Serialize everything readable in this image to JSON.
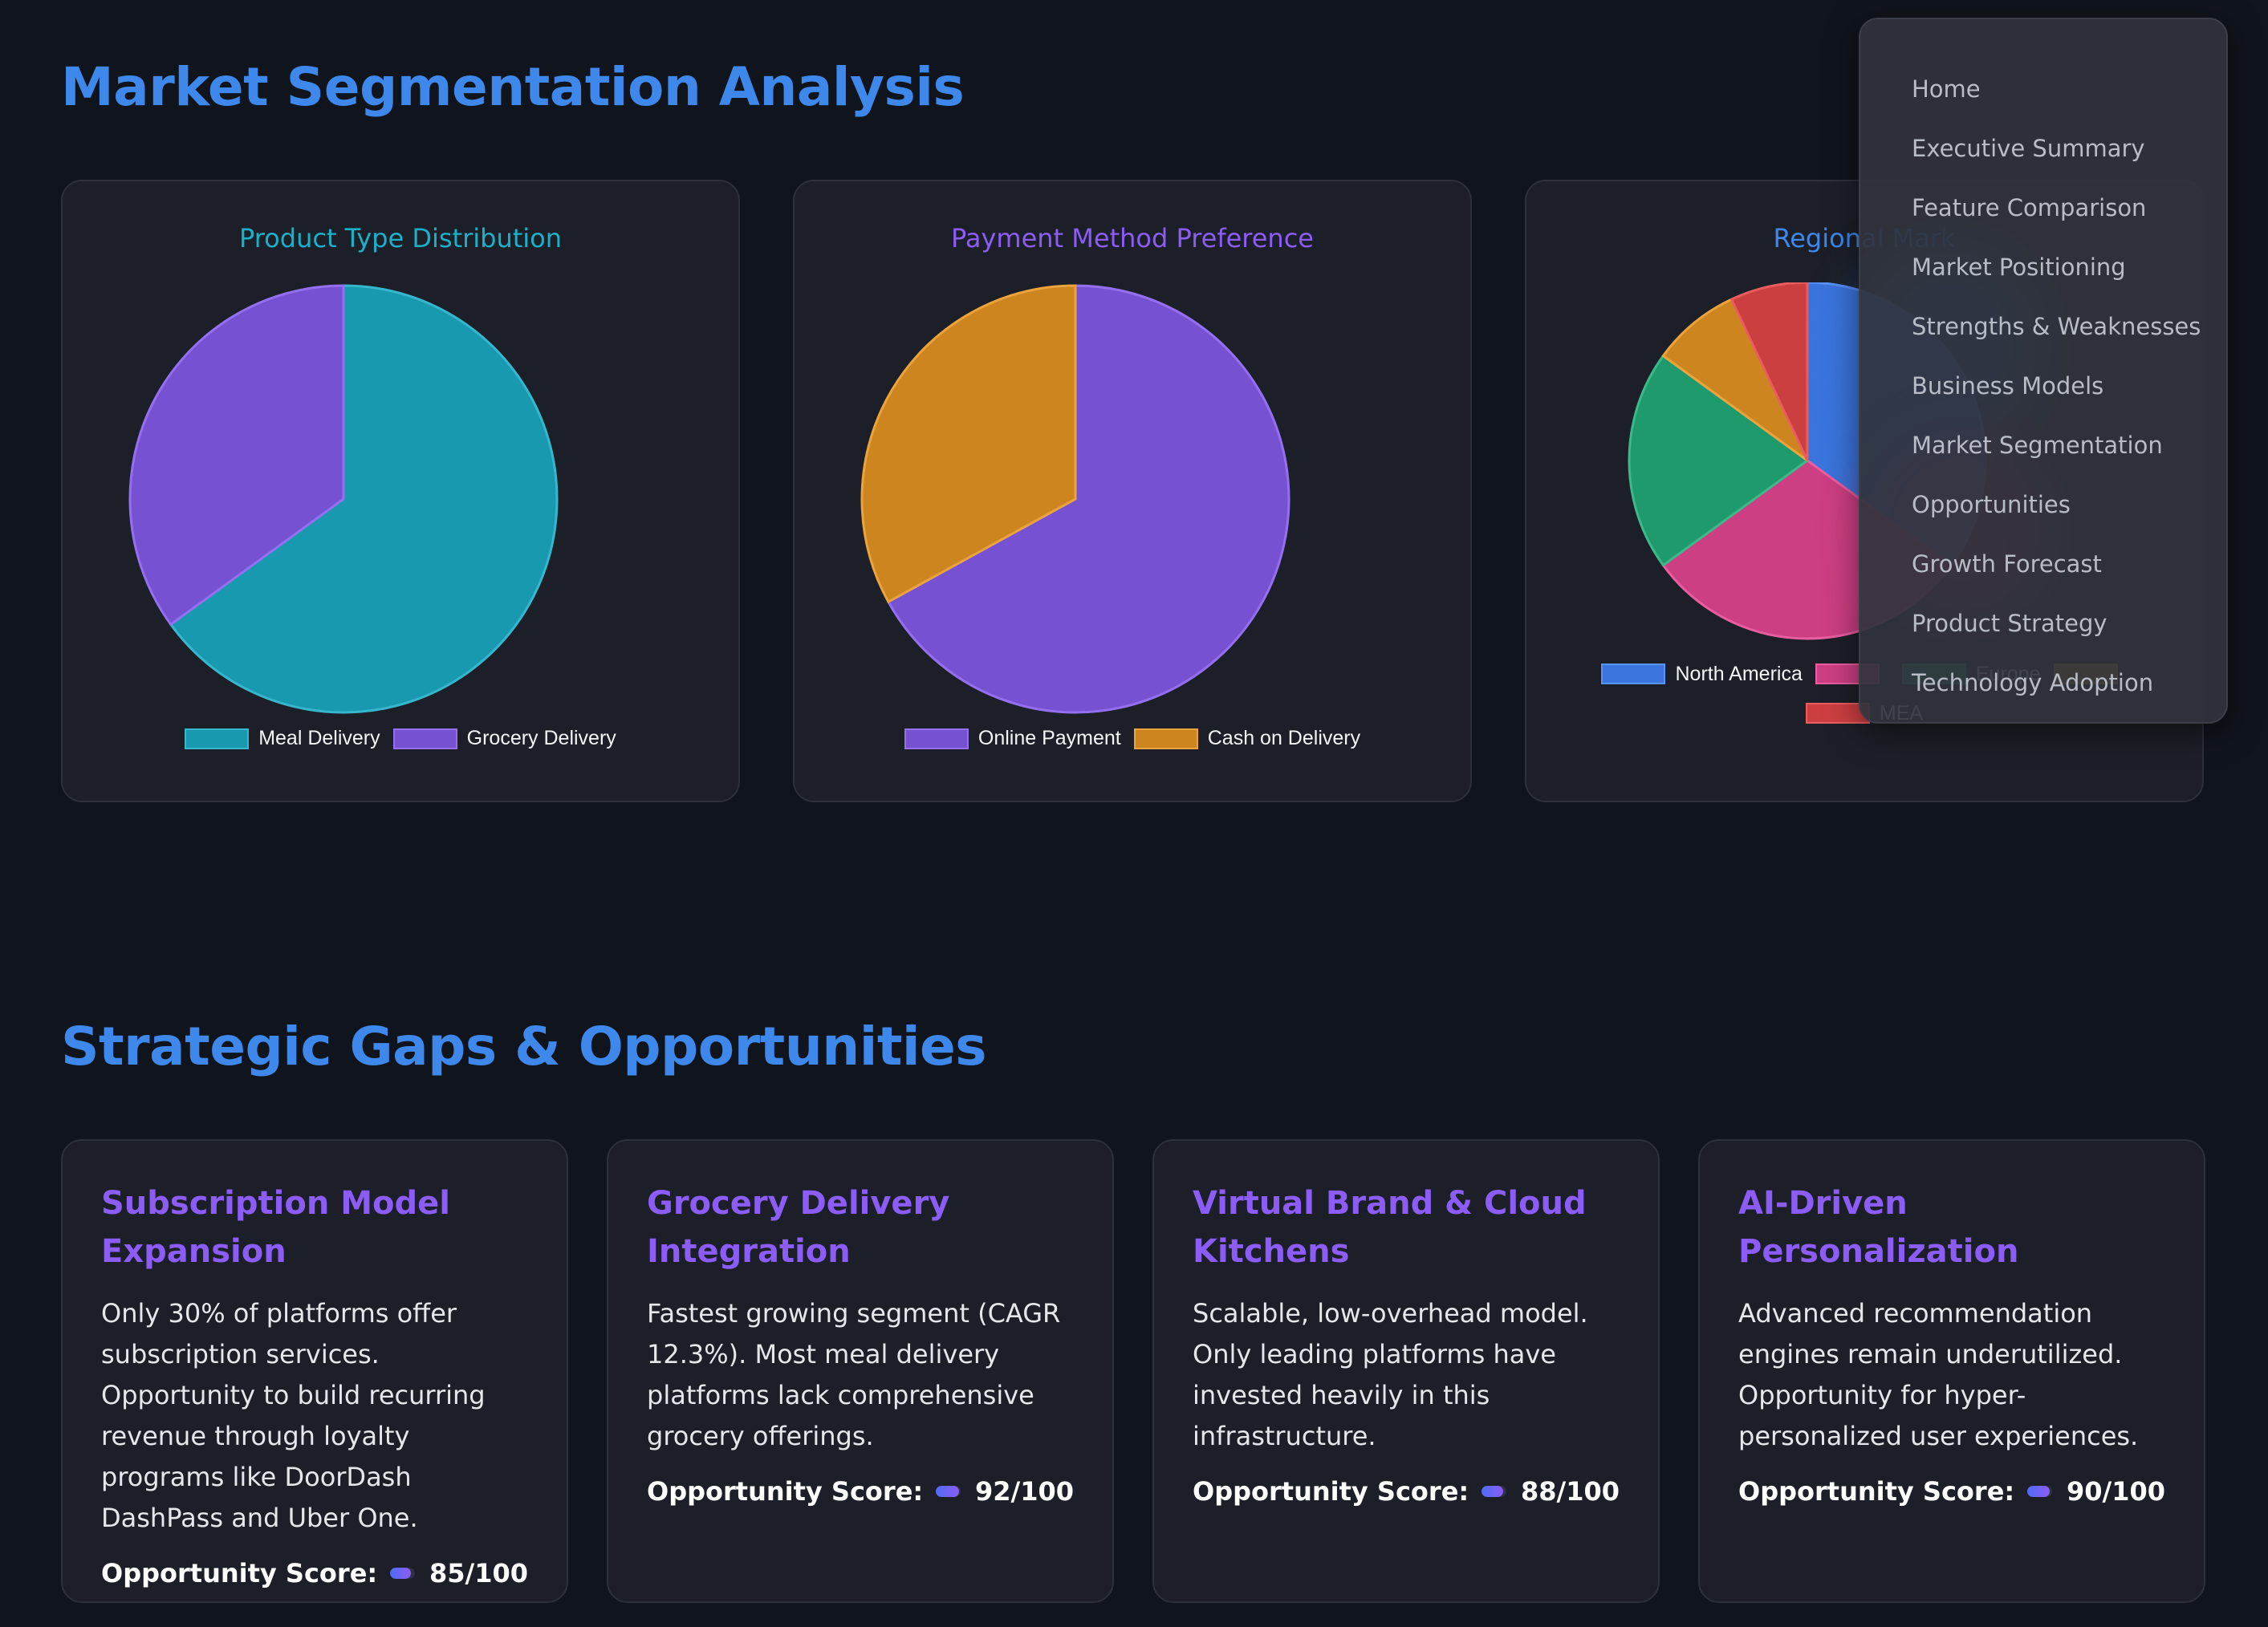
{
  "segmentation": {
    "title": "Market Segmentation Analysis",
    "charts": [
      {
        "title": "Product Type Distribution",
        "title_color": "#1ab1c8"
      },
      {
        "title": "Payment Method Preference",
        "title_color": "#8b5cf6"
      },
      {
        "title": "Regional Mark",
        "title_color": "#3d88ea"
      }
    ]
  },
  "chart_data": [
    {
      "type": "pie",
      "title": "Product Type Distribution",
      "labels": [
        "Meal Delivery",
        "Grocery Delivery"
      ],
      "values": [
        65,
        35
      ],
      "colors": [
        "#1899b0",
        "#7652d3"
      ],
      "legend": "bottom"
    },
    {
      "type": "pie",
      "title": "Payment Method Preference",
      "labels": [
        "Online Payment",
        "Cash on Delivery"
      ],
      "values": [
        67,
        33
      ],
      "colors": [
        "#7652d3",
        "#cd861f"
      ],
      "legend": "bottom"
    },
    {
      "type": "pie",
      "title": "Regional Mark",
      "labels": [
        "North America",
        "",
        "Europe",
        "",
        "MEA"
      ],
      "values": [
        35,
        30,
        20,
        8,
        7
      ],
      "colors": [
        "#3a74dc",
        "#cc3f82",
        "#1e9a6c",
        "#cd861f",
        "#cc3f41"
      ],
      "legend": "bottom"
    }
  ],
  "gaps": {
    "title": "Strategic Gaps & Opportunities",
    "score_label": "Opportunity Score:",
    "cards": [
      {
        "title": "Subscription Model Expansion",
        "body": "Only 30% of platforms offer subscription services. Opportunity to build recurring revenue through loyalty programs like DoorDash DashPass and Uber One.",
        "score": 85,
        "score_text": "85/100"
      },
      {
        "title": "Grocery Delivery Integration",
        "body": "Fastest growing segment (CAGR 12.3%). Most meal delivery platforms lack comprehensive grocery offerings.",
        "score": 92,
        "score_text": "92/100"
      },
      {
        "title": "Virtual Brand & Cloud Kitchens",
        "body": "Scalable, low-overhead model. Only leading platforms have invested heavily in this infrastructure.",
        "score": 88,
        "score_text": "88/100"
      },
      {
        "title": "AI-Driven Personalization",
        "body": "Advanced recommendation engines remain underutilized. Opportunity for hyper-personalized user experiences.",
        "score": 90,
        "score_text": "90/100"
      }
    ]
  },
  "nav": {
    "items": [
      "Home",
      "Executive Summary",
      "Feature Comparison",
      "Market Positioning",
      "Strengths & Weaknesses",
      "Business Models",
      "Market Segmentation",
      "Opportunities",
      "Growth Forecast",
      "Product Strategy",
      "Technology Adoption"
    ]
  }
}
